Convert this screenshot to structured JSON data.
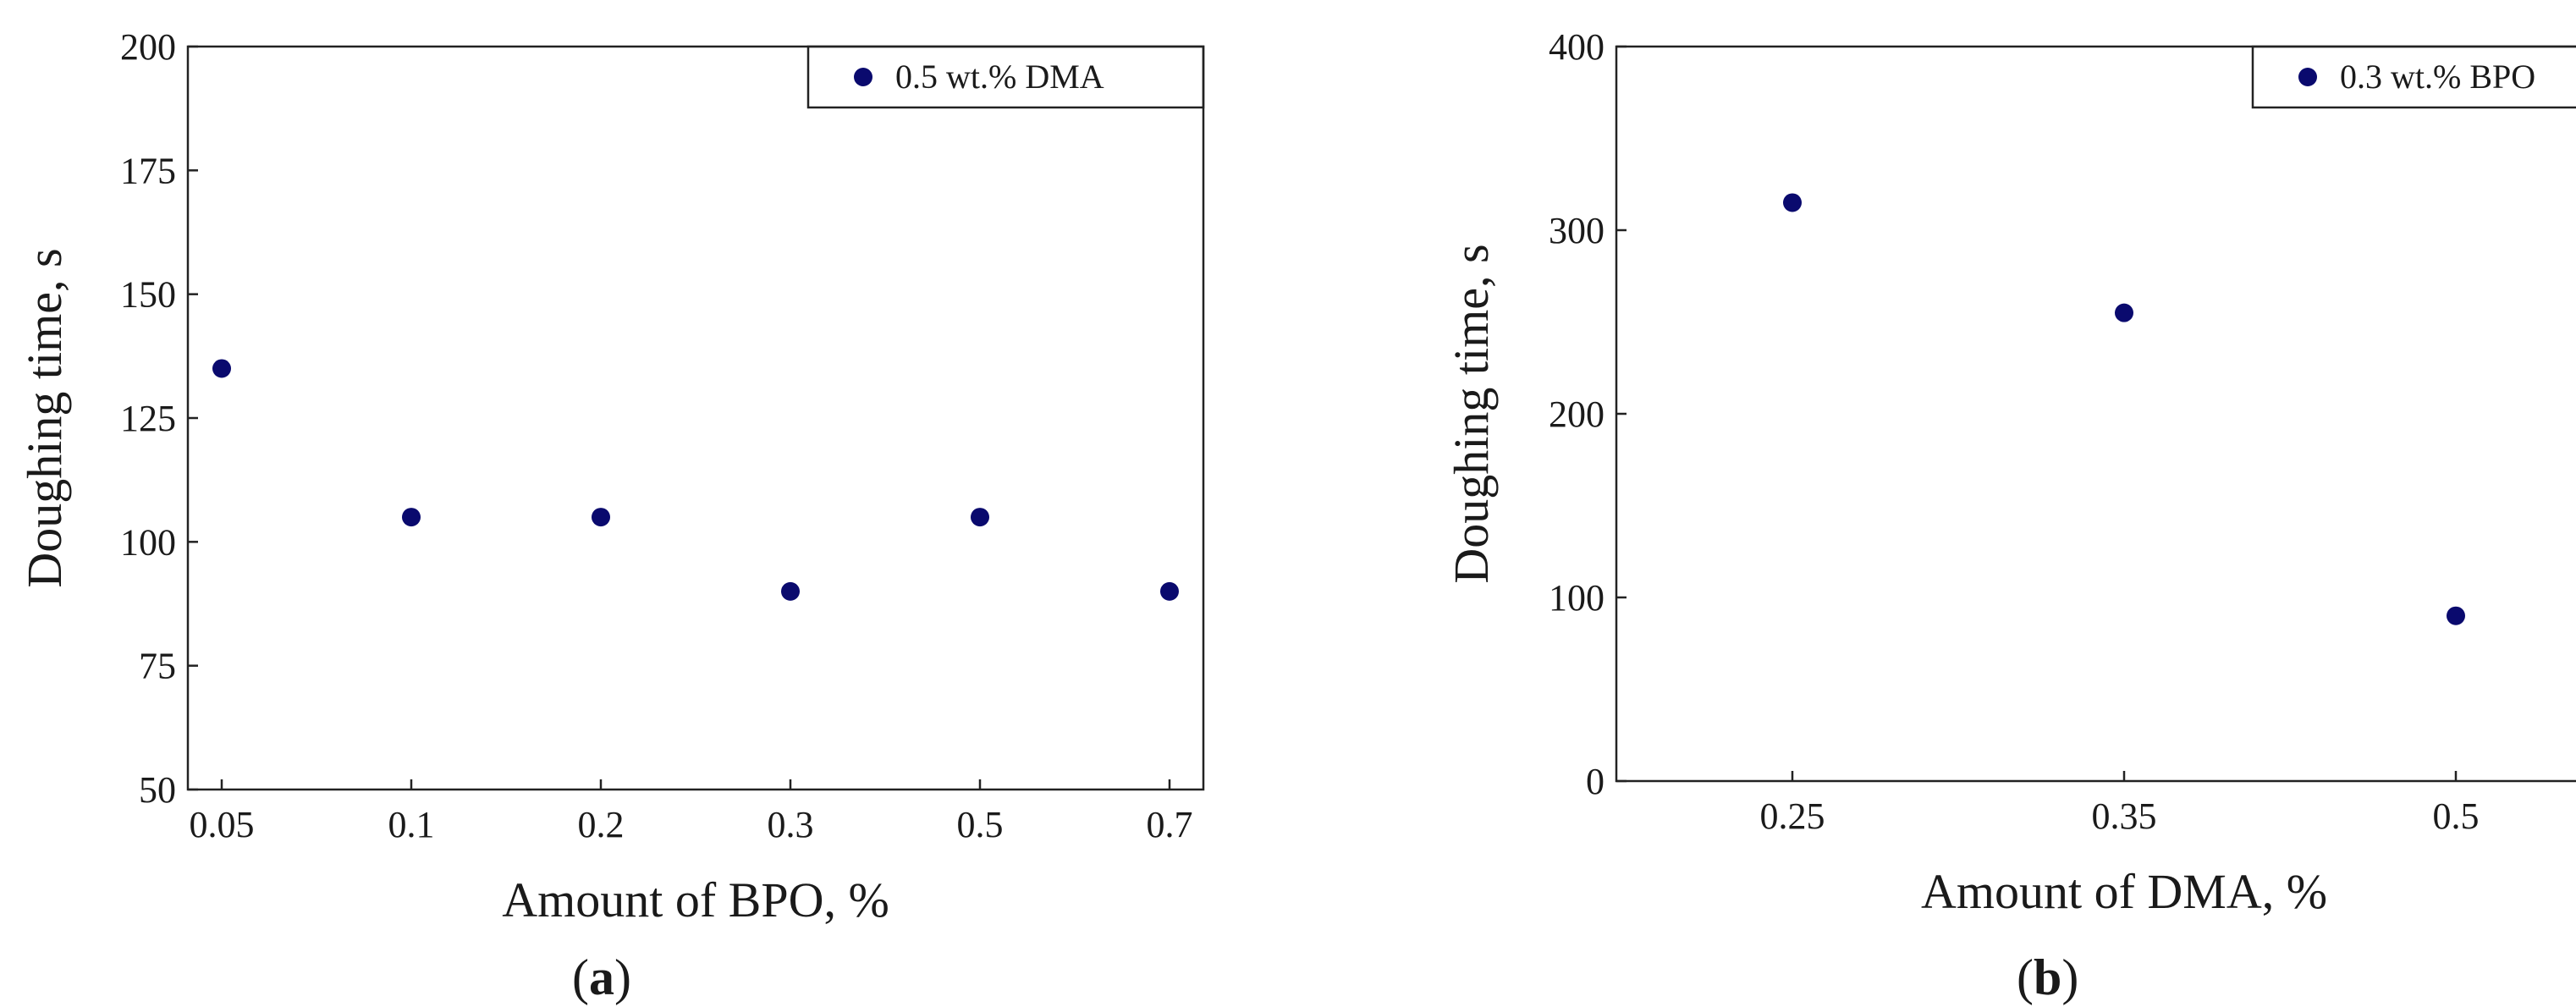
{
  "chart_data": [
    {
      "id": "a",
      "type": "scatter",
      "panel_label": "(a)",
      "panel_letter": "a",
      "categories": [
        "0.05",
        "0.1",
        "0.2",
        "0.3",
        "0.5",
        "0.7"
      ],
      "series": [
        {
          "name": "0.5 wt.% DMA",
          "values": [
            135,
            105,
            105,
            90,
            105,
            90
          ],
          "color": "#0a0a6e"
        }
      ],
      "xlabel": "Amount of BPO, %",
      "ylabel": "Doughing time, s",
      "ylim": [
        50,
        200
      ],
      "yticks": [
        50,
        75,
        100,
        125,
        150,
        175,
        200
      ],
      "legend": "top-right",
      "grid": false
    },
    {
      "id": "b",
      "type": "scatter",
      "panel_label": "(b)",
      "panel_letter": "b",
      "categories": [
        "0.25",
        "0.35",
        "0.5"
      ],
      "series": [
        {
          "name": "0.3 wt.% BPO",
          "values": [
            315,
            255,
            90
          ],
          "color": "#0a0a6e"
        }
      ],
      "xlabel": "Amount of DMA, %",
      "ylabel": "Doughing time, s",
      "ylim": [
        0,
        400
      ],
      "yticks": [
        0,
        100,
        200,
        300,
        400
      ],
      "legend": "top-right",
      "grid": false
    }
  ]
}
